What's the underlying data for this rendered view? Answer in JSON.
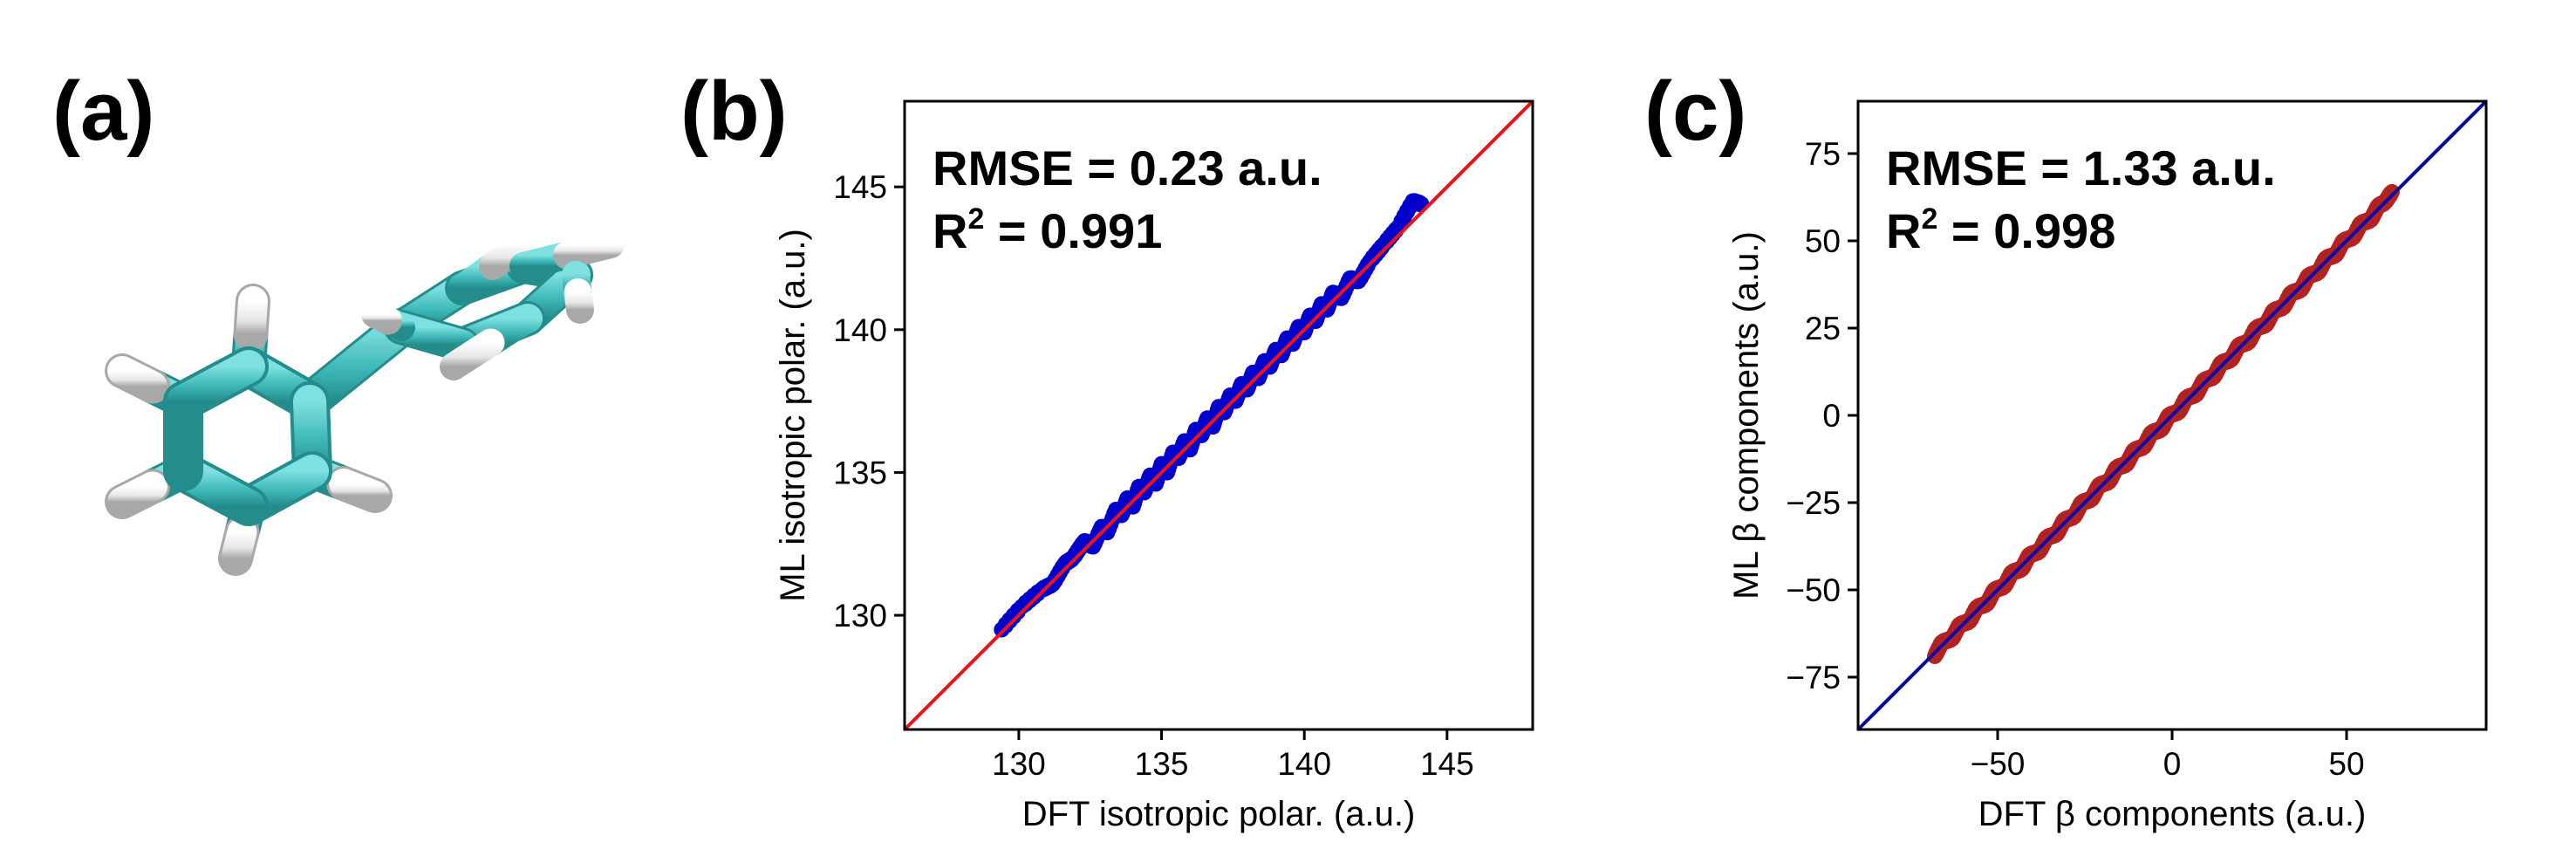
{
  "panels": {
    "a": {
      "label": "(a)"
    },
    "b": {
      "label": "(b)"
    },
    "c": {
      "label": "(c)"
    }
  },
  "molecule": {
    "colors": {
      "carbon": "#3fb8b8",
      "carbon_dark": "#258c8c",
      "hydrogen": "#e6e6e6",
      "hydrogen_dark": "#a8a8a8"
    }
  },
  "chart_data": [
    {
      "panel": "b",
      "type": "scatter",
      "xlabel": "DFT isotropic polar. (a.u.)",
      "ylabel": "ML isotropic polar. (a.u.)",
      "xlim": [
        126,
        148
      ],
      "ylim": [
        126,
        148
      ],
      "xticks": [
        130,
        135,
        140,
        145
      ],
      "yticks": [
        130,
        135,
        140,
        145
      ],
      "tick_labels_x": [
        "130",
        "135",
        "140",
        "145"
      ],
      "tick_labels_y": [
        "130",
        "135",
        "140",
        "145"
      ],
      "stats": {
        "rmse_text": "RMSE = 0.23 a.u.",
        "r2_prefix": "R",
        "r2_sup": "2",
        "r2_suffix": " = 0.991"
      },
      "grid": false,
      "point_color": "#0000cc",
      "line_color": "#e8141c",
      "reference_line": "y = x",
      "points": [
        [
          129.4,
          129.5
        ],
        [
          130.1,
          130.3
        ],
        [
          130.8,
          130.9
        ],
        [
          131.2,
          131.1
        ],
        [
          131.6,
          131.8
        ],
        [
          131.9,
          132.0
        ],
        [
          132.3,
          132.6
        ],
        [
          132.6,
          132.4
        ],
        [
          132.9,
          133.1
        ],
        [
          133.1,
          132.9
        ],
        [
          133.4,
          133.7
        ],
        [
          133.6,
          133.5
        ],
        [
          133.8,
          134.1
        ],
        [
          134.0,
          133.8
        ],
        [
          134.2,
          134.5
        ],
        [
          134.4,
          134.3
        ],
        [
          134.6,
          134.9
        ],
        [
          134.8,
          134.6
        ],
        [
          135.0,
          135.3
        ],
        [
          135.2,
          135.0
        ],
        [
          135.4,
          135.7
        ],
        [
          135.6,
          135.5
        ],
        [
          135.8,
          136.1
        ],
        [
          136.0,
          135.8
        ],
        [
          136.2,
          136.5
        ],
        [
          136.4,
          136.3
        ],
        [
          136.6,
          136.9
        ],
        [
          136.8,
          136.6
        ],
        [
          137.0,
          137.3
        ],
        [
          137.2,
          137.1
        ],
        [
          137.4,
          137.7
        ],
        [
          137.6,
          137.5
        ],
        [
          137.8,
          138.1
        ],
        [
          138.0,
          137.9
        ],
        [
          138.2,
          138.5
        ],
        [
          138.4,
          138.3
        ],
        [
          138.6,
          138.9
        ],
        [
          138.8,
          138.7
        ],
        [
          139.0,
          139.3
        ],
        [
          139.2,
          139.1
        ],
        [
          139.4,
          139.7
        ],
        [
          139.6,
          139.5
        ],
        [
          139.8,
          140.1
        ],
        [
          140.0,
          139.9
        ],
        [
          140.2,
          140.5
        ],
        [
          140.4,
          140.3
        ],
        [
          140.6,
          140.9
        ],
        [
          140.8,
          140.7
        ],
        [
          141.0,
          141.3
        ],
        [
          141.3,
          141.1
        ],
        [
          141.6,
          141.8
        ],
        [
          141.9,
          141.7
        ],
        [
          142.3,
          142.4
        ],
        [
          142.8,
          143.0
        ],
        [
          143.3,
          143.6
        ],
        [
          143.8,
          144.5
        ],
        [
          144.1,
          144.4
        ]
      ]
    },
    {
      "panel": "c",
      "type": "scatter",
      "xlabel": "DFT β components (a.u.)",
      "ylabel": "ML β components (a.u.)",
      "xlim": [
        -90,
        90
      ],
      "ylim": [
        -90,
        90
      ],
      "xticks": [
        -50,
        0,
        50
      ],
      "yticks": [
        -75,
        -50,
        -25,
        0,
        25,
        50,
        75
      ],
      "tick_labels_x": [
        "−50",
        "0",
        "50"
      ],
      "tick_labels_y": [
        "−75",
        "−50",
        "−25",
        "0",
        "25",
        "50",
        "75"
      ],
      "stats": {
        "rmse_text": "RMSE = 1.33 a.u.",
        "r2_prefix": "R",
        "r2_sup": "2",
        "r2_suffix": " = 0.998"
      },
      "grid": false,
      "point_color": "#b22222",
      "line_color": "#0a0aa0",
      "reference_line": "y = x",
      "points": [
        [
          -68,
          -69
        ],
        [
          -66,
          -65
        ],
        [
          -63,
          -64
        ],
        [
          -61,
          -60
        ],
        [
          -58,
          -59
        ],
        [
          -56,
          -55
        ],
        [
          -53,
          -54
        ],
        [
          -51,
          -50
        ],
        [
          -48,
          -49
        ],
        [
          -46,
          -45
        ],
        [
          -43,
          -44
        ],
        [
          -41,
          -40
        ],
        [
          -38,
          -39
        ],
        [
          -36,
          -35
        ],
        [
          -33,
          -34
        ],
        [
          -31,
          -30
        ],
        [
          -28,
          -29
        ],
        [
          -26,
          -25
        ],
        [
          -23,
          -24
        ],
        [
          -21,
          -20
        ],
        [
          -18,
          -19
        ],
        [
          -16,
          -15
        ],
        [
          -13,
          -14
        ],
        [
          -11,
          -10
        ],
        [
          -8,
          -9
        ],
        [
          -6,
          -5
        ],
        [
          -3,
          -4
        ],
        [
          -1,
          0
        ],
        [
          2,
          1
        ],
        [
          4,
          5
        ],
        [
          7,
          6
        ],
        [
          9,
          10
        ],
        [
          12,
          11
        ],
        [
          14,
          15
        ],
        [
          17,
          16
        ],
        [
          19,
          20
        ],
        [
          22,
          21
        ],
        [
          24,
          25
        ],
        [
          27,
          26
        ],
        [
          29,
          30
        ],
        [
          32,
          31
        ],
        [
          34,
          35
        ],
        [
          37,
          36
        ],
        [
          39,
          40
        ],
        [
          42,
          41
        ],
        [
          44,
          45
        ],
        [
          47,
          46
        ],
        [
          49,
          50
        ],
        [
          52,
          51
        ],
        [
          54,
          55
        ],
        [
          57,
          56
        ],
        [
          59,
          60
        ],
        [
          61,
          61
        ],
        [
          63,
          64
        ]
      ]
    }
  ]
}
